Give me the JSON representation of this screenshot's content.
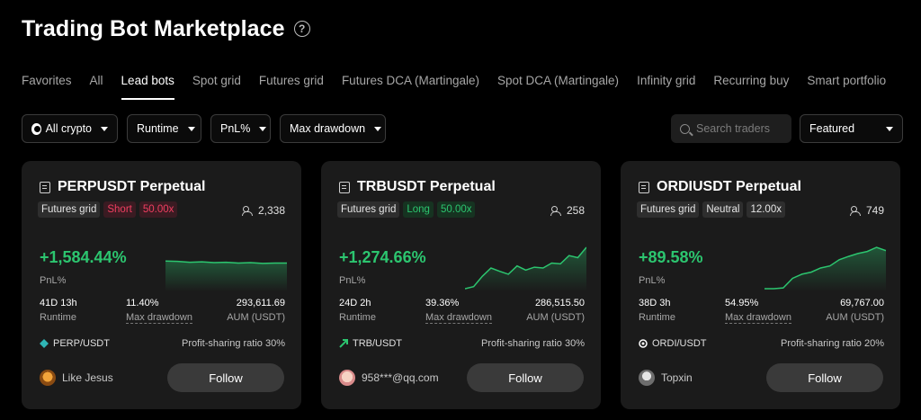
{
  "header": {
    "title": "Trading Bot Marketplace",
    "help_glyph": "?"
  },
  "tabs": [
    {
      "label": "Favorites"
    },
    {
      "label": "All"
    },
    {
      "label": "Lead bots",
      "active": true
    },
    {
      "label": "Spot grid"
    },
    {
      "label": "Futures grid"
    },
    {
      "label": "Futures DCA (Martingale)"
    },
    {
      "label": "Spot DCA (Martingale)"
    },
    {
      "label": "Infinity grid"
    },
    {
      "label": "Recurring buy"
    },
    {
      "label": "Smart portfolio"
    }
  ],
  "filters": {
    "crypto": "All crypto",
    "runtime": "Runtime",
    "pnl": "PnL%",
    "drawdown": "Max drawdown",
    "search_placeholder": "Search traders",
    "sort": "Featured"
  },
  "labels": {
    "pnl": "PnL%",
    "runtime": "Runtime",
    "drawdown": "Max drawdown",
    "aum": "AUM (USDT)",
    "follow": "Follow"
  },
  "cards": [
    {
      "title": "PERPUSDT Perpetual",
      "type": "Futures grid",
      "direction": "Short",
      "leverage": "50.00x",
      "copiers": "2,338",
      "pnl": "+1,584.44%",
      "runtime": "41D 13h",
      "drawdown": "11.40%",
      "aum": "293,611.69",
      "pair": "PERP/USDT",
      "share": "Profit-sharing ratio 30%",
      "trader": "Like Jesus",
      "spark": [
        0.67,
        0.66,
        0.64,
        0.65,
        0.63,
        0.64,
        0.62,
        0.63,
        0.61,
        0.62,
        0.62
      ]
    },
    {
      "title": "TRBUSDT Perpetual",
      "type": "Futures grid",
      "direction": "Long",
      "leverage": "50.00x",
      "copiers": "258",
      "pnl": "+1,274.66%",
      "runtime": "24D 2h",
      "drawdown": "39.36%",
      "aum": "286,515.50",
      "pair": "TRB/USDT",
      "share": "Profit-sharing ratio 30%",
      "trader": "958***@qq.com",
      "spark": [
        0.0,
        0.05,
        0.3,
        0.5,
        0.42,
        0.35,
        0.55,
        0.45,
        0.52,
        0.5,
        0.62,
        0.6,
        0.8,
        0.75,
        1.0
      ]
    },
    {
      "title": "ORDIUSDT Perpetual",
      "type": "Futures grid",
      "direction": "Neutral",
      "leverage": "12.00x",
      "copiers": "749",
      "pnl": "+89.58%",
      "runtime": "38D 3h",
      "drawdown": "54.95%",
      "aum": "69,767.00",
      "pair": "ORDI/USDT",
      "share": "Profit-sharing ratio 20%",
      "trader": "Topxin",
      "spark": [
        0.0,
        0.0,
        0.02,
        0.25,
        0.35,
        0.4,
        0.5,
        0.55,
        0.7,
        0.78,
        0.85,
        0.9,
        1.0,
        0.92
      ]
    }
  ],
  "colors": {
    "profit": "#2cc56f",
    "short": "#f03e60",
    "card_bg": "#1b1b1b",
    "button": "#3a3a3a"
  }
}
